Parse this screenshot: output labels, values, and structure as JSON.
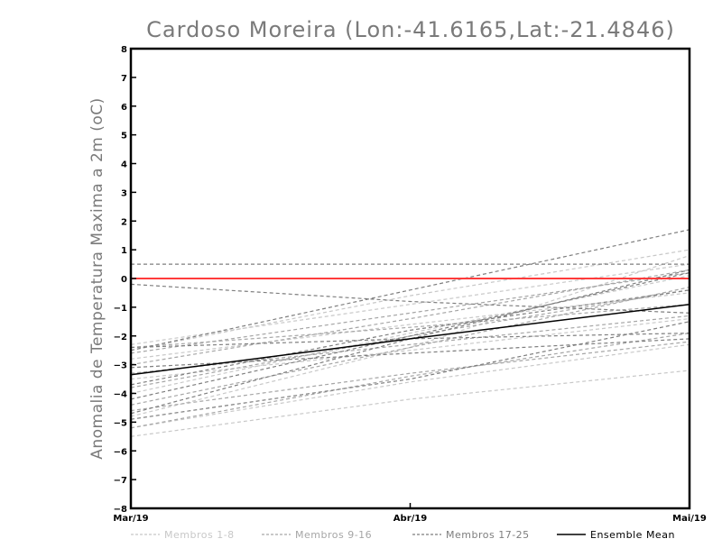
{
  "chart_data": {
    "type": "line",
    "title": "Cardoso Moreira (Lon:-41.6165,Lat:-21.4846)",
    "xlabel": "",
    "ylabel": "Anomalia de Temperatura Maxima a 2m (oC)",
    "x": [
      "Mar/19",
      "Abr/19",
      "Mai/19"
    ],
    "ylim": [
      -8,
      8
    ],
    "yticks": [
      -8,
      -7,
      -6,
      -5,
      -4,
      -3,
      -2,
      -1,
      0,
      1,
      2,
      3,
      4,
      5,
      6,
      7,
      8
    ],
    "reference_line": {
      "y": 0,
      "color": "#ff3b3b"
    },
    "colors": {
      "group1": "#c8c8c8",
      "group2": "#a6a6a6",
      "group3": "#7e7e7e",
      "mean": "#000000"
    },
    "series": [
      {
        "name": "Membro 1",
        "group": 1,
        "values": [
          -2.3,
          -0.9,
          0.5
        ]
      },
      {
        "name": "Membro 2",
        "group": 1,
        "values": [
          -5.5,
          -4.2,
          -3.2
        ]
      },
      {
        "name": "Membro 3",
        "group": 1,
        "values": [
          -5.2,
          -3.6,
          -2.3
        ]
      },
      {
        "name": "Membro 4",
        "group": 1,
        "values": [
          -4.8,
          -2.4,
          0.8
        ]
      },
      {
        "name": "Membro 5",
        "group": 1,
        "values": [
          -2.5,
          -0.6,
          1.0
        ]
      },
      {
        "name": "Membro 6",
        "group": 1,
        "values": [
          -4.0,
          -1.9,
          0.1
        ]
      },
      {
        "name": "Membro 7",
        "group": 1,
        "values": [
          -2.8,
          -1.6,
          -0.5
        ]
      },
      {
        "name": "Membro 8",
        "group": 1,
        "values": [
          -3.5,
          -2.5,
          -1.4
        ]
      },
      {
        "name": "Membro 9",
        "group": 2,
        "values": [
          -3.0,
          -1.4,
          0.3
        ]
      },
      {
        "name": "Membro 10",
        "group": 2,
        "values": [
          -5.2,
          -3.4,
          -1.9
        ]
      },
      {
        "name": "Membro 11",
        "group": 2,
        "values": [
          -2.6,
          -1.2,
          0.2
        ]
      },
      {
        "name": "Membro 12",
        "group": 2,
        "values": [
          -4.4,
          -2.4,
          -0.3
        ]
      },
      {
        "name": "Membro 13",
        "group": 2,
        "values": [
          -3.3,
          -2.3,
          -1.3
        ]
      },
      {
        "name": "Membro 14",
        "group": 2,
        "values": [
          -2.4,
          -1.7,
          -0.9
        ]
      },
      {
        "name": "Membro 15",
        "group": 2,
        "values": [
          -4.6,
          -3.3,
          -2.2
        ]
      },
      {
        "name": "Membro 16",
        "group": 2,
        "values": [
          -3.8,
          -2.0,
          -0.4
        ]
      },
      {
        "name": "Membro 17",
        "group": 3,
        "values": [
          0.5,
          0.5,
          0.5
        ]
      },
      {
        "name": "Membro 18",
        "group": 3,
        "values": [
          -0.2,
          -0.8,
          -1.2
        ]
      },
      {
        "name": "Membro 19",
        "group": 3,
        "values": [
          -2.5,
          -0.4,
          1.7
        ]
      },
      {
        "name": "Membro 20",
        "group": 3,
        "values": [
          -4.7,
          -2.1,
          0.3
        ]
      },
      {
        "name": "Membro 21",
        "group": 3,
        "values": [
          -2.4,
          -2.1,
          -1.9
        ]
      },
      {
        "name": "Membro 22",
        "group": 3,
        "values": [
          -4.2,
          -2.0,
          0.2
        ]
      },
      {
        "name": "Membro 23",
        "group": 3,
        "values": [
          -3.7,
          -1.8,
          -0.4
        ]
      },
      {
        "name": "Membro 24",
        "group": 3,
        "values": [
          -3.1,
          -2.6,
          -2.1
        ]
      },
      {
        "name": "Membro 25",
        "group": 3,
        "values": [
          -4.9,
          -3.5,
          -1.5
        ]
      },
      {
        "name": "Ensemble Mean",
        "group": 0,
        "values": [
          -3.35,
          -2.1,
          -0.9
        ]
      }
    ],
    "legend": {
      "position": "bottom",
      "entries": [
        {
          "label": "Membros 1-8",
          "style": "group1"
        },
        {
          "label": "Membros 9-16",
          "style": "group2"
        },
        {
          "label": "Membros 17-25",
          "style": "group3"
        },
        {
          "label": "Ensemble Mean",
          "style": "mean"
        }
      ]
    }
  }
}
